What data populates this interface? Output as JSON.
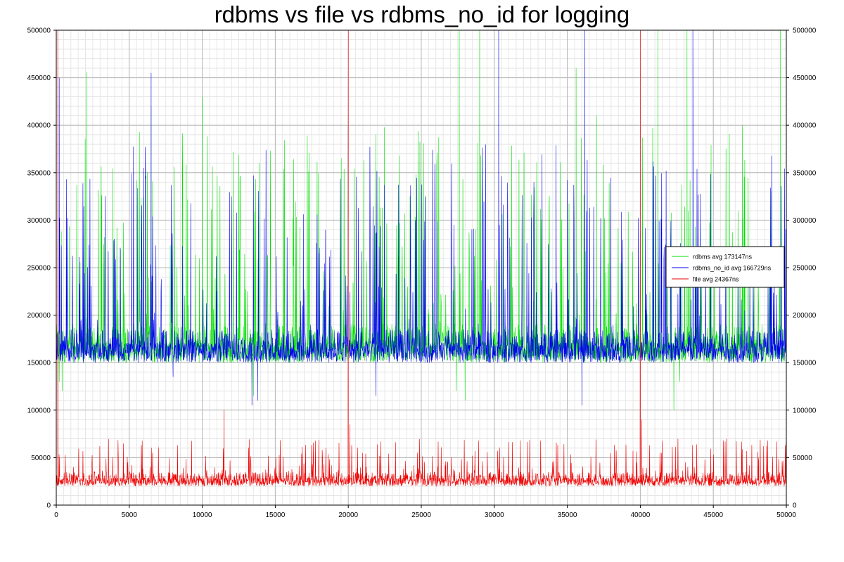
{
  "chart_data": {
    "type": "line",
    "title": "rdbms vs file vs rdbms_no_id for logging",
    "xlabel": "",
    "ylabel": "",
    "xlim": [
      0,
      50000
    ],
    "ylim": [
      0,
      500000
    ],
    "x_ticks": [
      0,
      5000,
      10000,
      15000,
      20000,
      25000,
      30000,
      35000,
      40000,
      45000,
      50000
    ],
    "y_ticks": [
      0,
      50000,
      100000,
      150000,
      200000,
      250000,
      300000,
      350000,
      400000,
      450000,
      500000
    ],
    "grid": true,
    "right_axis_labels": true,
    "legend_position": "right",
    "series": [
      {
        "name": "rdbms avg 173147ns",
        "color": "#00e000",
        "baseline": 170000,
        "band_low": 150000,
        "band_high": 190000,
        "spike_max": 400000,
        "points": [
          [
            0,
            240000
          ],
          [
            200,
            130000
          ],
          [
            400,
            120000
          ],
          [
            2100,
            456000
          ],
          [
            6500,
            420000
          ],
          [
            10000,
            430000
          ],
          [
            13500,
            115000
          ],
          [
            20000,
            410000
          ],
          [
            27400,
            120000
          ],
          [
            27600,
            500000
          ],
          [
            28000,
            110000
          ],
          [
            29000,
            500000
          ],
          [
            35600,
            460000
          ],
          [
            37000,
            410000
          ],
          [
            41200,
            500000
          ],
          [
            42300,
            100000
          ],
          [
            42700,
            130000
          ],
          [
            43200,
            500000
          ],
          [
            47000,
            400000
          ],
          [
            49600,
            500000
          ],
          [
            50000,
            170000
          ]
        ]
      },
      {
        "name": "rdbms_no_id avg 166729ns",
        "color": "#0000ee",
        "baseline": 166000,
        "band_low": 150000,
        "band_high": 185000,
        "spike_max": 380000,
        "points": [
          [
            0,
            500000
          ],
          [
            200,
            450000
          ],
          [
            6500,
            455000
          ],
          [
            8000,
            135000
          ],
          [
            13400,
            105000
          ],
          [
            13800,
            110000
          ],
          [
            20000,
            400000
          ],
          [
            21900,
            115000
          ],
          [
            30300,
            500000
          ],
          [
            36000,
            105000
          ],
          [
            36200,
            500000
          ],
          [
            43600,
            500000
          ],
          [
            50000,
            165000
          ]
        ]
      },
      {
        "name": "file avg 24367ns",
        "color": "#ee0000",
        "baseline": 25000,
        "band_low": 20000,
        "band_high": 35000,
        "spike_max": 70000,
        "points": [
          [
            0,
            25000
          ],
          [
            100,
            500000
          ],
          [
            200,
            30000
          ],
          [
            11500,
            100000
          ],
          [
            20000,
            500000
          ],
          [
            20100,
            85000
          ],
          [
            40000,
            500000
          ],
          [
            40100,
            90000
          ],
          [
            50000,
            25000
          ]
        ]
      }
    ]
  }
}
